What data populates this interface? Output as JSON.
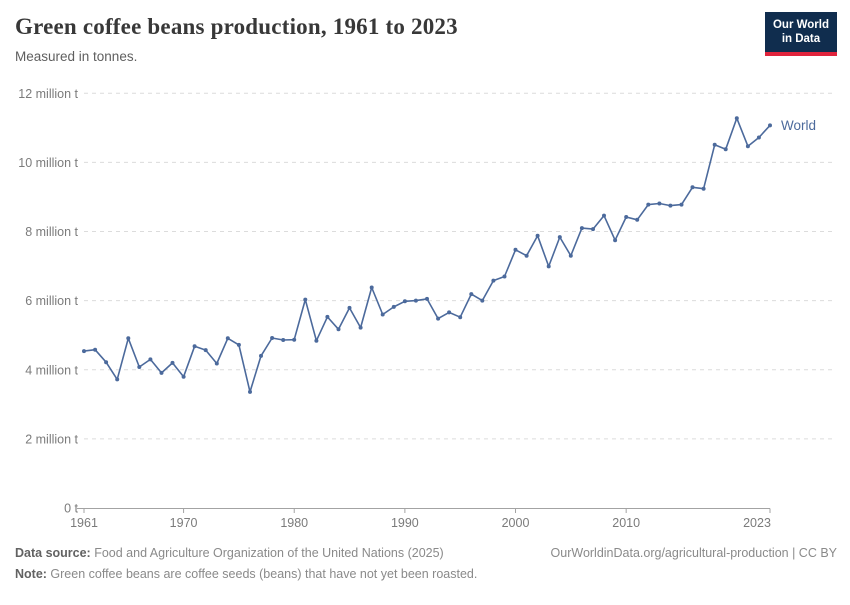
{
  "header": {
    "title": "Green coffee beans production, 1961 to 2023",
    "subtitle": "Measured in tonnes.",
    "logo": {
      "line1": "Our World",
      "line2": "in Data",
      "bg": "#102d4e",
      "accent": "#e0233c"
    }
  },
  "chart_data": {
    "type": "line",
    "title": "Green coffee beans production, 1961 to 2023",
    "subtitle": "Measured in tonnes.",
    "unit": "million tonnes",
    "xlim": [
      1961,
      2023
    ],
    "ylim": [
      0,
      12
    ],
    "grid": "horizontal-dashed",
    "legend_position": "end-of-line",
    "x_ticks": [
      1961,
      1970,
      1980,
      1990,
      2000,
      2010,
      2023
    ],
    "y_ticks": [
      {
        "v": 0,
        "label": "0 t"
      },
      {
        "v": 2,
        "label": "2 million t"
      },
      {
        "v": 4,
        "label": "4 million t"
      },
      {
        "v": 6,
        "label": "6 million t"
      },
      {
        "v": 8,
        "label": "8 million t"
      },
      {
        "v": 10,
        "label": "10 million t"
      },
      {
        "v": 12,
        "label": "12 million t"
      }
    ],
    "colors": {
      "grid": "#dcdcdc",
      "axis": "#a3a3a3",
      "tick_text": "#7b7b7b"
    },
    "series": [
      {
        "name": "World",
        "color": "#4c6a9c",
        "years": [
          1961,
          1962,
          1963,
          1964,
          1965,
          1966,
          1967,
          1968,
          1969,
          1970,
          1971,
          1972,
          1973,
          1974,
          1975,
          1976,
          1977,
          1978,
          1979,
          1980,
          1981,
          1982,
          1983,
          1984,
          1985,
          1986,
          1987,
          1988,
          1989,
          1990,
          1991,
          1992,
          1993,
          1994,
          1995,
          1996,
          1997,
          1998,
          1999,
          2000,
          2001,
          2002,
          2003,
          2004,
          2005,
          2006,
          2007,
          2008,
          2009,
          2010,
          2011,
          2012,
          2013,
          2014,
          2015,
          2016,
          2017,
          2018,
          2019,
          2020,
          2021,
          2022,
          2023
        ],
        "values": [
          4.54,
          4.58,
          4.22,
          3.72,
          4.91,
          4.08,
          4.3,
          3.91,
          4.2,
          3.8,
          4.68,
          4.57,
          4.18,
          4.91,
          4.72,
          3.36,
          4.4,
          4.92,
          4.86,
          4.87,
          6.03,
          4.84,
          5.53,
          5.17,
          5.79,
          5.22,
          6.38,
          5.6,
          5.82,
          5.98,
          6.0,
          6.05,
          5.48,
          5.66,
          5.52,
          6.19,
          6.0,
          6.58,
          6.7,
          7.47,
          7.3,
          7.88,
          6.99,
          7.84,
          7.3,
          8.1,
          8.07,
          8.46,
          7.75,
          8.42,
          8.34,
          8.78,
          8.81,
          8.75,
          8.78,
          9.28,
          9.24,
          10.51,
          10.38,
          11.28,
          10.47,
          10.72,
          11.07
        ]
      }
    ]
  },
  "footer": {
    "source_label": "Data source:",
    "source_text": " Food and Agriculture Organization of the United Nations (2025)",
    "link": "OurWorldinData.org/agricultural-production | CC BY",
    "note_label": "Note:",
    "note_text": " Green coffee beans are coffee seeds (beans) that have not yet been roasted."
  }
}
